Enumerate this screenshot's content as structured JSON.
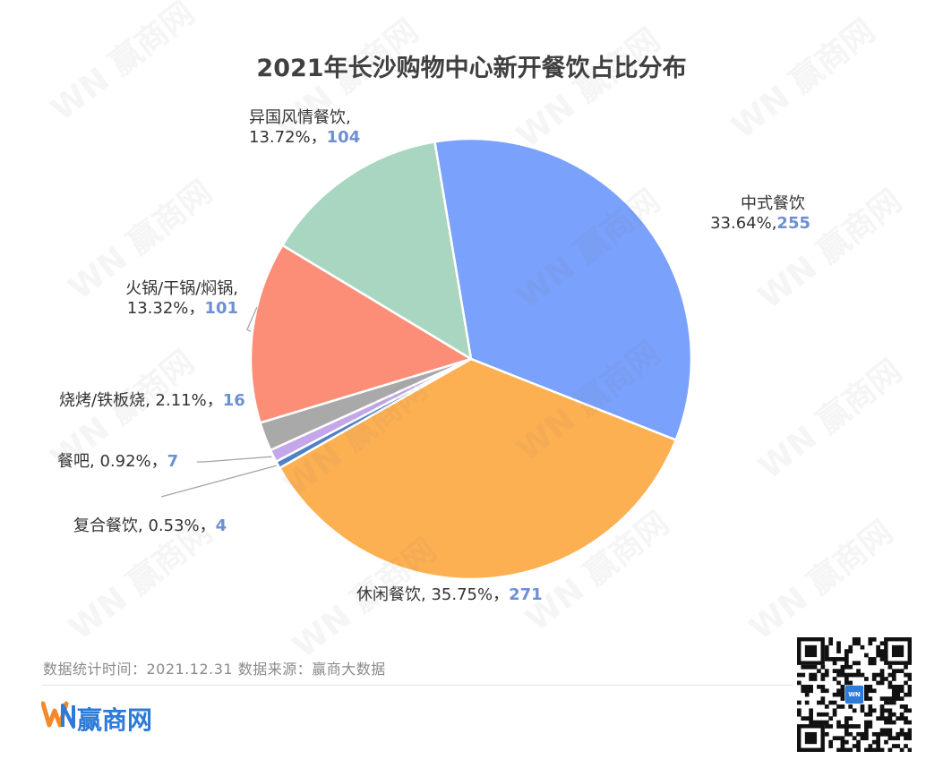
{
  "colors": {
    "中式餐饮": "#7aa1fb",
    "休闲餐饮": "#fdb052",
    "复合餐饮": "#4f81c4",
    "餐吧": "#c3a7e8",
    "烧烤/铁板烧": "#a9a9a9",
    "火锅/干锅/焖锅": "#fc8e77",
    "异国风情餐饮": "#a9d6c0",
    "label_number": "#6d8fd4",
    "brand": "#2d7bd8",
    "brand_orange": "#f28a2c"
  },
  "chart_data": {
    "type": "pie",
    "title": "2021年长沙购物中心新开餐饮占比分布",
    "slices": [
      {
        "name": "中式餐饮",
        "percent_label": "33.64%,",
        "count": 255,
        "percent": 33.64
      },
      {
        "name": "休闲餐饮",
        "percent_label": "35.75%，",
        "count": 271,
        "percent": 35.75
      },
      {
        "name": "复合餐饮",
        "percent_label": "0.53%，",
        "count": 4,
        "percent": 0.53
      },
      {
        "name": "餐吧",
        "percent_label": "0.92%，",
        "count": 7,
        "percent": 0.92
      },
      {
        "name": "烧烤/铁板烧",
        "percent_label": "2.11%，",
        "count": 16,
        "percent": 2.11
      },
      {
        "name": "火锅/干锅/焖锅",
        "percent_label": "13.32%，",
        "count": 101,
        "percent": 13.32
      },
      {
        "name": "异国风情餐饮",
        "percent_label": "13.72%，",
        "count": 104,
        "percent": 13.72
      }
    ]
  },
  "footer": {
    "note": "数据统计时间：2021.12.31  数据来源：赢商大数据",
    "brand": "赢商网",
    "logo_text": "WN",
    "watermark": "赢商网"
  }
}
